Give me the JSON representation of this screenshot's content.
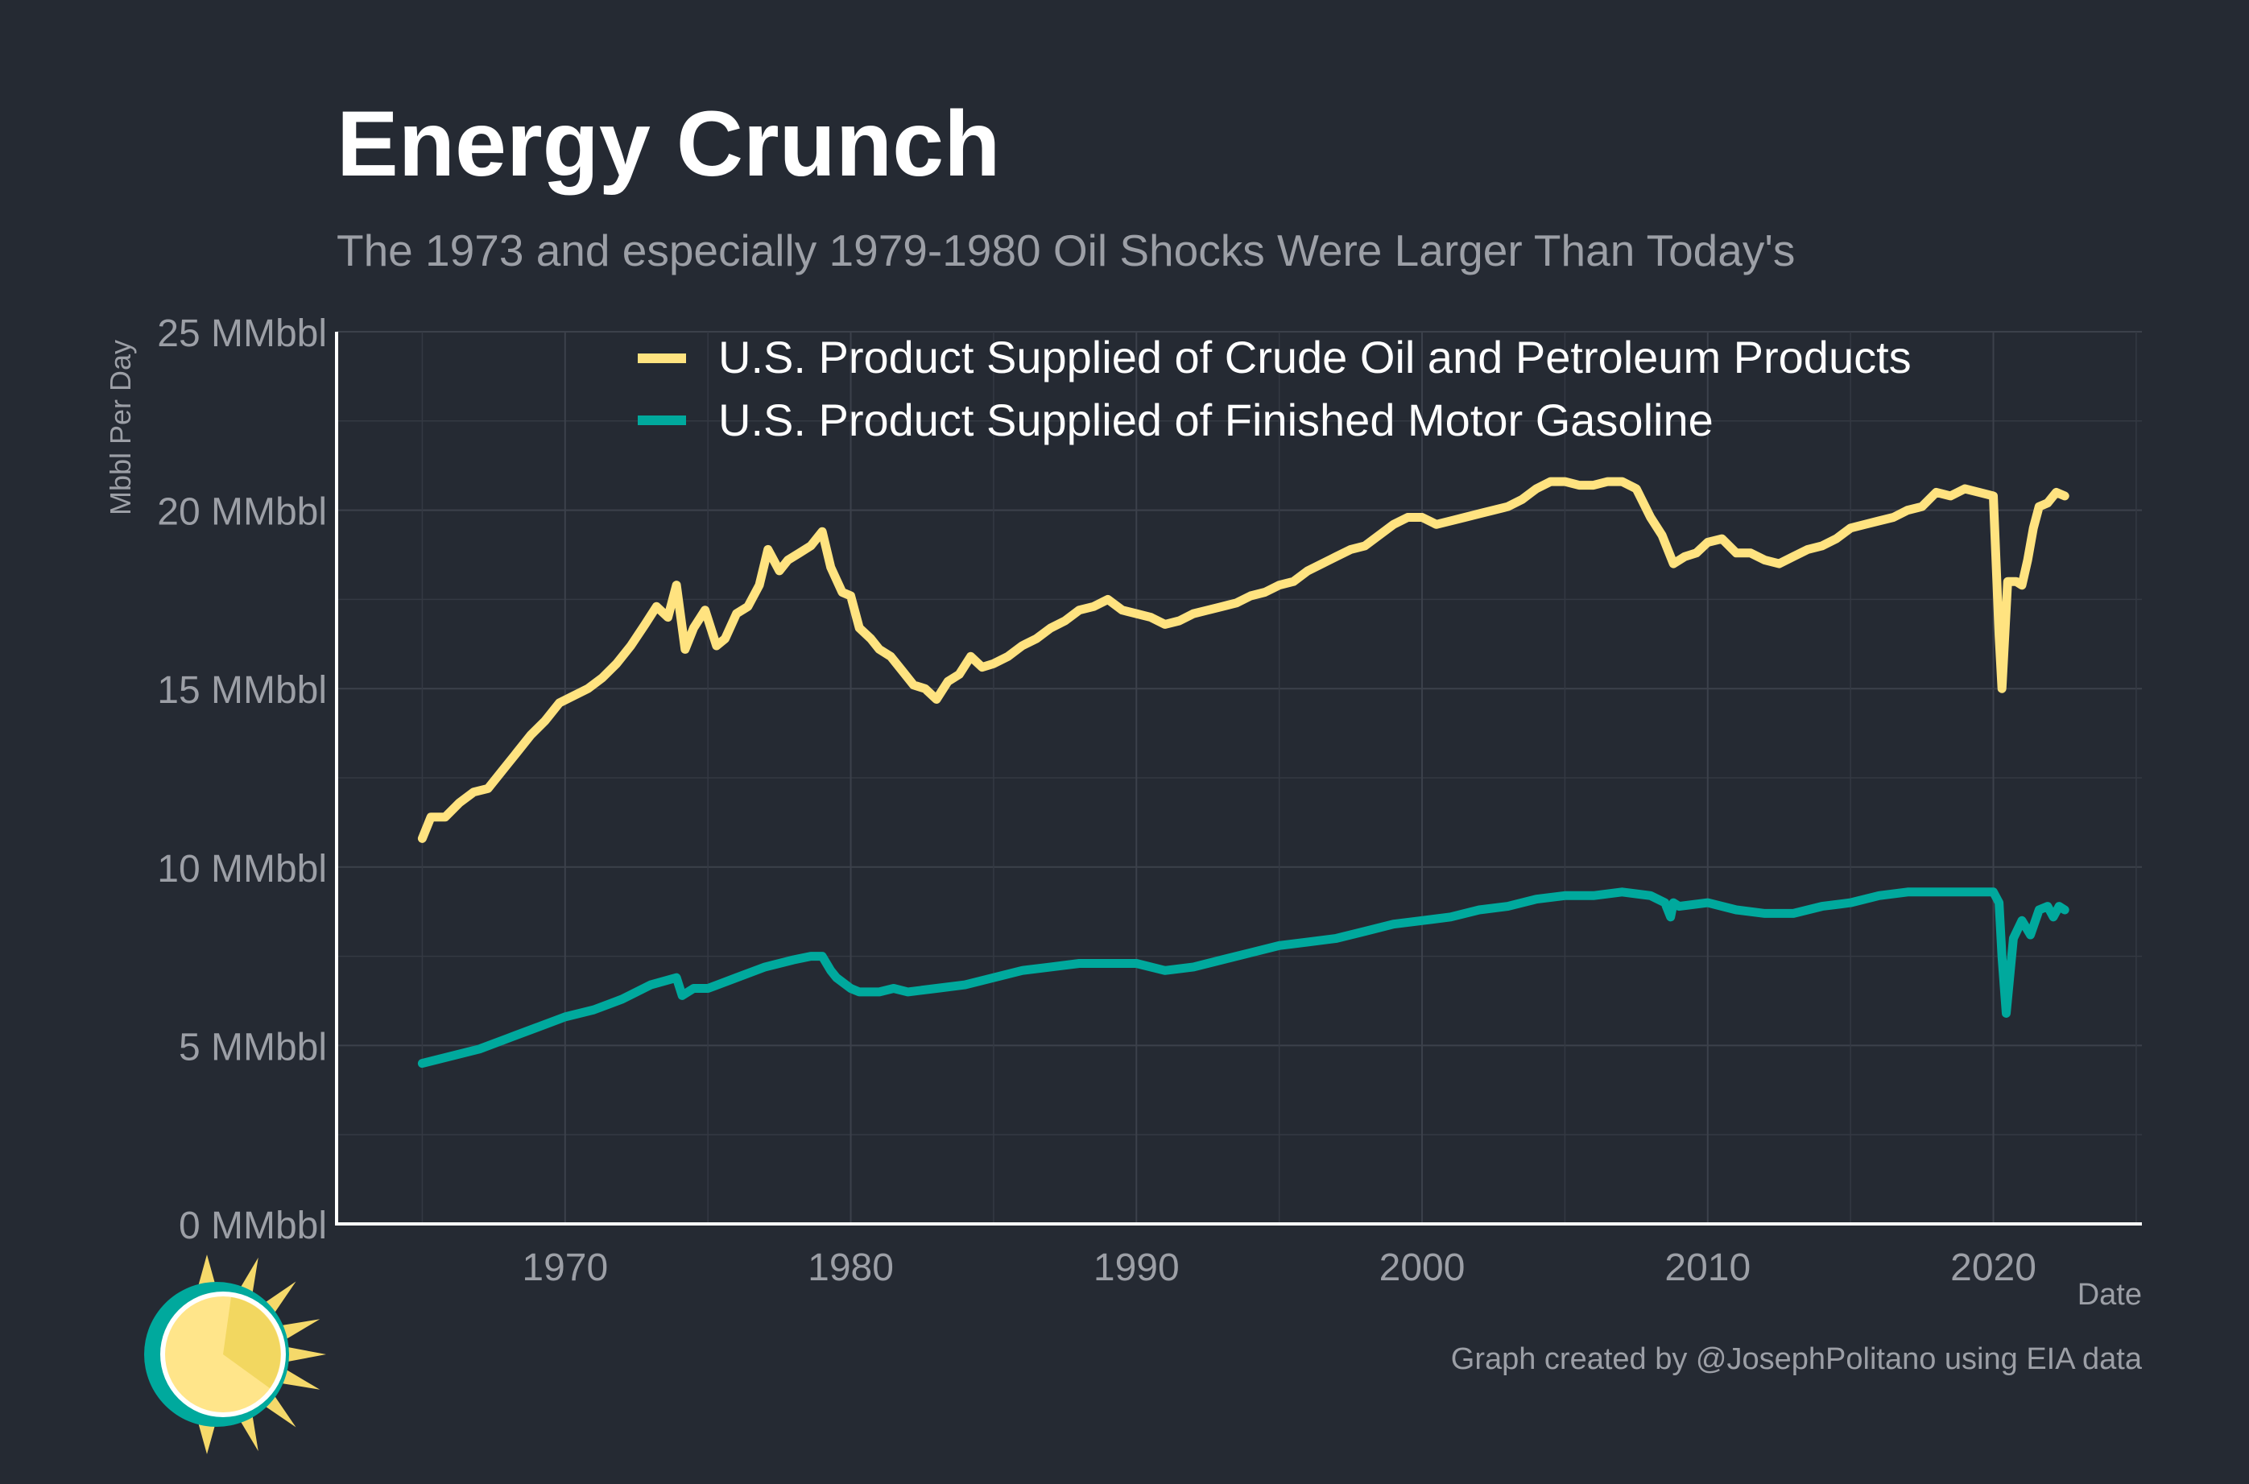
{
  "colors": {
    "background": "#252a33",
    "crude": "#ffe380",
    "gasoline": "#00a99d",
    "grid": "#3c414b",
    "axis": "#ffffff"
  },
  "logo": {
    "name": "sun-logo-icon"
  },
  "chart_data": {
    "type": "line",
    "title": "Energy Crunch",
    "subtitle": "The 1973 and especially 1979-1980 Oil Shocks Were Larger Than Today's",
    "xlabel": "Date",
    "ylabel": "Mbbl Per Day",
    "xlim": [
      1962,
      2025.2
    ],
    "ylim": [
      0,
      25
    ],
    "x_ticks": [
      1970,
      1980,
      1990,
      2000,
      2010,
      2020
    ],
    "x_tick_labels": [
      "1970",
      "1980",
      "1990",
      "2000",
      "2010",
      "2020"
    ],
    "y_ticks": [
      0,
      5,
      10,
      15,
      20,
      25
    ],
    "y_tick_labels": [
      "0 MMbbl",
      "5 MMbbl",
      "10 MMbbl",
      "15 MMbbl",
      "20 MMbbl",
      "25 MMbbl"
    ],
    "grid": true,
    "legend_position": "top-center",
    "caption": "Graph created by @JosephPolitano using EIA data",
    "series": [
      {
        "name": "U.S. Product Supplied of Crude Oil and Petroleum Products",
        "x": [
          1965.0,
          1965.3,
          1965.8,
          1966.3,
          1966.8,
          1967.3,
          1967.8,
          1968.3,
          1968.8,
          1969.3,
          1969.8,
          1970.3,
          1970.8,
          1971.3,
          1971.8,
          1972.3,
          1972.8,
          1973.2,
          1973.6,
          1973.9,
          1974.2,
          1974.5,
          1974.9,
          1975.3,
          1975.6,
          1976.0,
          1976.4,
          1976.8,
          1977.1,
          1977.5,
          1977.8,
          1978.2,
          1978.6,
          1979.0,
          1979.3,
          1979.7,
          1980.0,
          1980.3,
          1980.7,
          1981.0,
          1981.4,
          1981.8,
          1982.2,
          1982.6,
          1983.0,
          1983.4,
          1983.8,
          1984.2,
          1984.6,
          1985.0,
          1985.5,
          1986.0,
          1986.5,
          1987.0,
          1987.5,
          1988.0,
          1988.5,
          1989.0,
          1989.5,
          1990.0,
          1990.5,
          1991.0,
          1991.5,
          1992.0,
          1992.5,
          1993.0,
          1993.5,
          1994.0,
          1994.5,
          1995.0,
          1995.5,
          1996.0,
          1996.5,
          1997.0,
          1997.5,
          1998.0,
          1998.5,
          1999.0,
          1999.5,
          2000.0,
          2000.5,
          2001.0,
          2001.5,
          2002.0,
          2002.5,
          2003.0,
          2003.5,
          2004.0,
          2004.5,
          2005.0,
          2005.5,
          2006.0,
          2006.5,
          2007.0,
          2007.5,
          2008.0,
          2008.4,
          2008.8,
          2009.2,
          2009.6,
          2010.0,
          2010.5,
          2011.0,
          2011.5,
          2012.0,
          2012.5,
          2013.0,
          2013.5,
          2014.0,
          2014.5,
          2015.0,
          2015.5,
          2016.0,
          2016.5,
          2017.0,
          2017.5,
          2018.0,
          2018.5,
          2019.0,
          2019.5,
          2020.0,
          2020.2,
          2020.3,
          2020.5,
          2020.8,
          2021.0,
          2021.2,
          2021.4,
          2021.6,
          2021.9,
          2022.2,
          2022.5
        ],
        "y": [
          10.8,
          11.4,
          11.4,
          11.8,
          12.1,
          12.2,
          12.7,
          13.2,
          13.7,
          14.1,
          14.6,
          14.8,
          15.0,
          15.3,
          15.7,
          16.2,
          16.8,
          17.3,
          17.0,
          17.9,
          16.1,
          16.7,
          17.2,
          16.2,
          16.4,
          17.1,
          17.3,
          17.9,
          18.9,
          18.3,
          18.6,
          18.8,
          19.0,
          19.4,
          18.4,
          17.7,
          17.6,
          16.7,
          16.4,
          16.1,
          15.9,
          15.5,
          15.1,
          15.0,
          14.7,
          15.2,
          15.4,
          15.9,
          15.6,
          15.7,
          15.9,
          16.2,
          16.4,
          16.7,
          16.9,
          17.2,
          17.3,
          17.5,
          17.2,
          17.1,
          17.0,
          16.8,
          16.9,
          17.1,
          17.2,
          17.3,
          17.4,
          17.6,
          17.7,
          17.9,
          18.0,
          18.3,
          18.5,
          18.7,
          18.9,
          19.0,
          19.3,
          19.6,
          19.8,
          19.8,
          19.6,
          19.7,
          19.8,
          19.9,
          20.0,
          20.1,
          20.3,
          20.6,
          20.8,
          20.8,
          20.7,
          20.7,
          20.8,
          20.8,
          20.6,
          19.8,
          19.3,
          18.5,
          18.7,
          18.8,
          19.1,
          19.2,
          18.8,
          18.8,
          18.6,
          18.5,
          18.7,
          18.9,
          19.0,
          19.2,
          19.5,
          19.6,
          19.7,
          19.8,
          20.0,
          20.1,
          20.5,
          20.4,
          20.6,
          20.5,
          20.4,
          16.5,
          15.0,
          18.0,
          18.0,
          17.9,
          18.6,
          19.5,
          20.1,
          20.2,
          20.5,
          20.4
        ]
      },
      {
        "name": "U.S. Product Supplied of Finished Motor Gasoline",
        "x": [
          1965.0,
          1966.0,
          1967.0,
          1968.0,
          1969.0,
          1970.0,
          1971.0,
          1972.0,
          1973.0,
          1973.9,
          1974.1,
          1974.5,
          1975.0,
          1976.0,
          1977.0,
          1978.0,
          1978.6,
          1979.0,
          1979.3,
          1979.5,
          1980.0,
          1980.3,
          1981.0,
          1981.5,
          1982.0,
          1983.0,
          1984.0,
          1985.0,
          1986.0,
          1987.0,
          1988.0,
          1989.0,
          1990.0,
          1991.0,
          1992.0,
          1993.0,
          1994.0,
          1995.0,
          1996.0,
          1997.0,
          1998.0,
          1999.0,
          2000.0,
          2001.0,
          2002.0,
          2003.0,
          2004.0,
          2005.0,
          2006.0,
          2007.0,
          2008.0,
          2008.5,
          2008.7,
          2008.8,
          2009.0,
          2010.0,
          2011.0,
          2012.0,
          2013.0,
          2014.0,
          2015.0,
          2016.0,
          2017.0,
          2018.0,
          2019.0,
          2020.0,
          2020.2,
          2020.3,
          2020.45,
          2020.7,
          2021.0,
          2021.3,
          2021.6,
          2021.9,
          2022.1,
          2022.3,
          2022.5
        ],
        "y": [
          4.5,
          4.7,
          4.9,
          5.2,
          5.5,
          5.8,
          6.0,
          6.3,
          6.7,
          6.9,
          6.4,
          6.6,
          6.6,
          6.9,
          7.2,
          7.4,
          7.5,
          7.5,
          7.1,
          6.9,
          6.6,
          6.5,
          6.5,
          6.6,
          6.5,
          6.6,
          6.7,
          6.9,
          7.1,
          7.2,
          7.3,
          7.3,
          7.3,
          7.1,
          7.2,
          7.4,
          7.6,
          7.8,
          7.9,
          8.0,
          8.2,
          8.4,
          8.5,
          8.6,
          8.8,
          8.9,
          9.1,
          9.2,
          9.2,
          9.3,
          9.2,
          9.0,
          8.6,
          9.0,
          8.9,
          9.0,
          8.8,
          8.7,
          8.7,
          8.9,
          9.0,
          9.2,
          9.3,
          9.3,
          9.3,
          9.3,
          9.0,
          7.5,
          5.9,
          8.0,
          8.5,
          8.1,
          8.8,
          8.9,
          8.6,
          8.9,
          8.8
        ]
      }
    ]
  }
}
